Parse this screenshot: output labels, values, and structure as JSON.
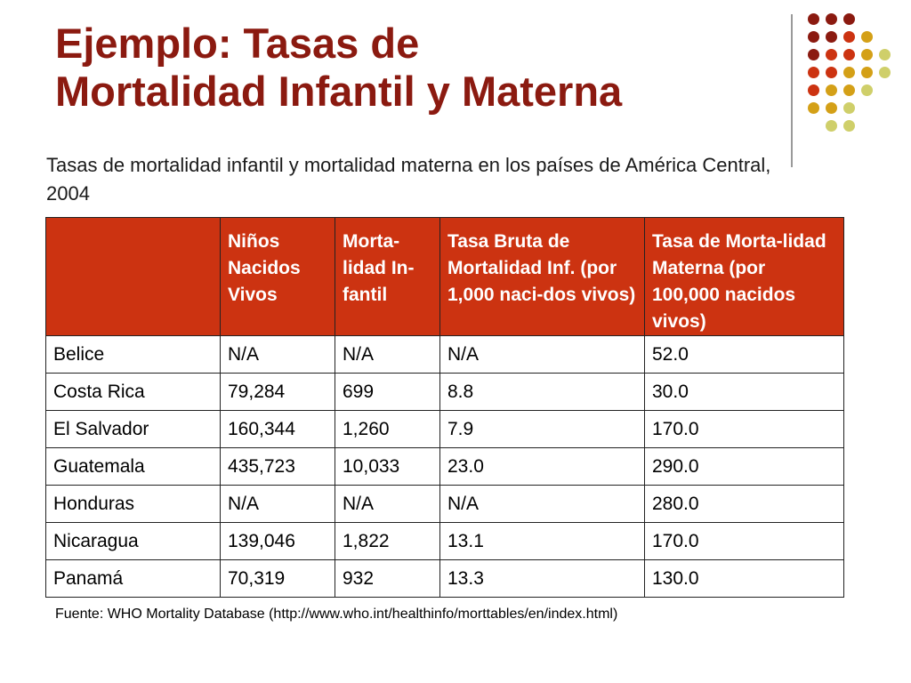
{
  "title": {
    "line1": "Ejemplo: Tasas de",
    "line2": "Mortalidad Infantil y Materna"
  },
  "subtitle": "Tasas de mortalidad infantil y mortalidad materna en los países de América Central, 2004",
  "table": {
    "headers": [
      "",
      "Niños Nacidos Vivos",
      "Morta-lidad In-fantil",
      "Tasa Bruta de Mortalidad Inf. (por 1,000 naci-dos vivos)",
      "Tasa de  Morta-lidad Materna (por 100,000 nacidos vivos)"
    ],
    "rows": [
      [
        "Belice",
        "N/A",
        "N/A",
        "N/A",
        "52.0"
      ],
      [
        "Costa Rica",
        "79,284",
        "699",
        "8.8",
        "30.0"
      ],
      [
        "El Salvador",
        "160,344",
        "1,260",
        "7.9",
        "170.0"
      ],
      [
        "Guatemala",
        "435,723",
        "10,033",
        "23.0",
        "290.0"
      ],
      [
        "Honduras",
        "N/A",
        "N/A",
        "N/A",
        "280.0"
      ],
      [
        "Nicaragua",
        "139,046",
        "1,822",
        "13.1",
        "170.0"
      ],
      [
        "Panamá",
        "70,319",
        "932",
        "13.3",
        "130.0"
      ]
    ]
  },
  "source": "Fuente: WHO Mortality Database (http://www.who.int/healthinfo/morttables/en/index.html)",
  "colors": {
    "title": "#8b1a10",
    "header_bg": "#cc3311",
    "dot_dark": "#8b1a10",
    "dot_red": "#cc3311",
    "dot_gold": "#d4a017",
    "dot_olive": "#cfcf6a"
  }
}
